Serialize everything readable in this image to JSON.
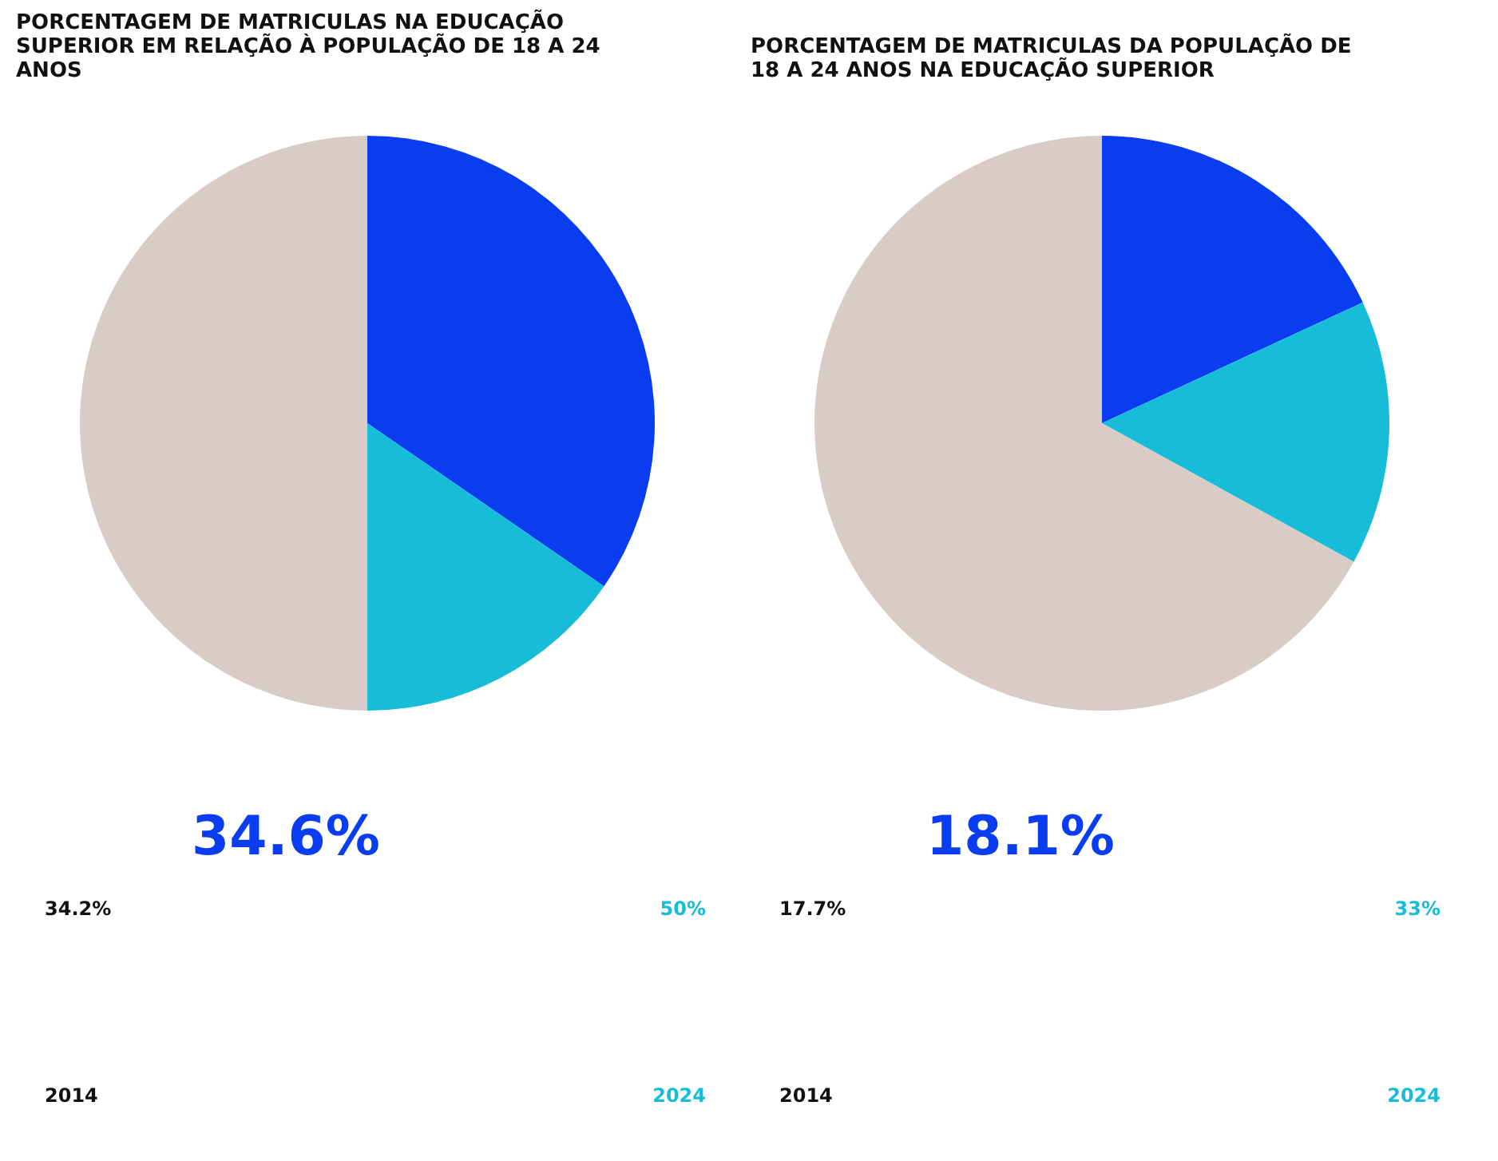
{
  "chart_data": [
    {
      "type": "pie",
      "title": "PORCENTAGEM DE MATRICULAS NA EDUCAÇÃO SUPERIOR EM RELAÇÃO À POPULAÇÃO DE 18 A 24 ANOS",
      "categories": [
        null,
        null,
        null
      ],
      "values": [
        34.6,
        15.4,
        50
      ],
      "colors": [
        "#0a3cf0",
        "#16bcd8",
        "#d9ccc6"
      ],
      "annotations": [
        "34.6%",
        "34.2%",
        "50%",
        "2014",
        "2024"
      ]
    },
    {
      "type": "pie",
      "title": "PORCENTAGEM DE MATRICULAS DA POPULAÇÃO DE 18 A 24 ANOS NA EDUCAÇÃO SUPERIOR",
      "categories": [
        null,
        null,
        null
      ],
      "values": [
        18.1,
        14.9,
        67
      ],
      "colors": [
        "#0a3cf0",
        "#16bcd8",
        "#d9ccc6"
      ],
      "annotations": [
        "18.1%",
        "17.7%",
        "33%",
        "2014",
        "2024"
      ]
    }
  ]
}
